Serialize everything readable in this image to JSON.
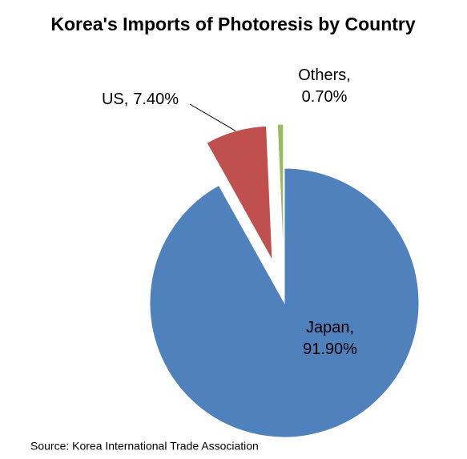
{
  "chart_data": {
    "type": "pie",
    "title": "Korea's Imports of Photoresis by Country",
    "categories": [
      "Japan,",
      "US,",
      "Others,"
    ],
    "values": [
      91.9,
      7.4,
      0.7
    ],
    "value_labels": [
      "91.90%",
      "7.40%",
      "0.70%"
    ],
    "colors": [
      "#4f81bd",
      "#c0504d",
      "#9bbb59"
    ],
    "exploded": [
      false,
      true,
      true
    ],
    "source": "Source: Korea International Trade Association"
  }
}
